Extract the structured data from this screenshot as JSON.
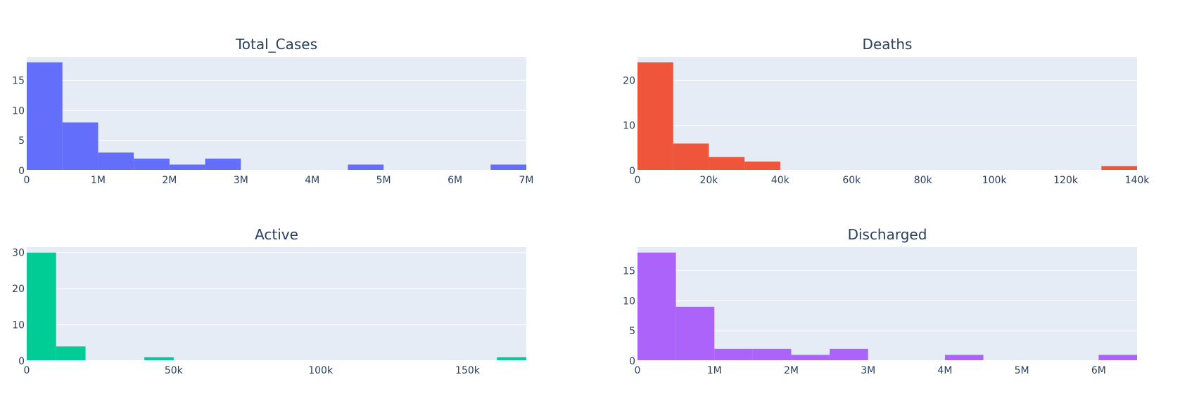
{
  "chart_data": [
    {
      "type": "bar",
      "title": "Total_Cases",
      "color": "#636efa",
      "bin_width": 500000,
      "x_start": 0,
      "values": [
        18,
        8,
        3,
        2,
        1,
        2,
        0,
        0,
        0,
        1,
        0,
        0,
        0,
        1
      ],
      "xlim": [
        0,
        7000000
      ],
      "ylim": [
        0,
        18.9
      ],
      "x_ticks": [
        {
          "v": 0,
          "label": "0"
        },
        {
          "v": 1000000,
          "label": "1M"
        },
        {
          "v": 2000000,
          "label": "2M"
        },
        {
          "v": 3000000,
          "label": "3M"
        },
        {
          "v": 4000000,
          "label": "4M"
        },
        {
          "v": 5000000,
          "label": "5M"
        },
        {
          "v": 6000000,
          "label": "6M"
        },
        {
          "v": 7000000,
          "label": "7M"
        }
      ],
      "y_ticks": [
        {
          "v": 0,
          "label": "0"
        },
        {
          "v": 5,
          "label": "5"
        },
        {
          "v": 10,
          "label": "10"
        },
        {
          "v": 15,
          "label": "15"
        }
      ],
      "grid": true
    },
    {
      "type": "bar",
      "title": "Deaths",
      "color": "#ef553b",
      "bin_width": 10000,
      "x_start": 0,
      "values": [
        24,
        6,
        3,
        2,
        0,
        0,
        0,
        0,
        0,
        0,
        0,
        0,
        0,
        1
      ],
      "xlim": [
        0,
        140000
      ],
      "ylim": [
        0,
        25.2
      ],
      "x_ticks": [
        {
          "v": 0,
          "label": "0"
        },
        {
          "v": 20000,
          "label": "20k"
        },
        {
          "v": 40000,
          "label": "40k"
        },
        {
          "v": 60000,
          "label": "60k"
        },
        {
          "v": 80000,
          "label": "80k"
        },
        {
          "v": 100000,
          "label": "100k"
        },
        {
          "v": 120000,
          "label": "120k"
        },
        {
          "v": 140000,
          "label": "140k"
        }
      ],
      "y_ticks": [
        {
          "v": 0,
          "label": "0"
        },
        {
          "v": 10,
          "label": "10"
        },
        {
          "v": 20,
          "label": "20"
        }
      ],
      "grid": true
    },
    {
      "type": "bar",
      "title": "Active",
      "color": "#00cc96",
      "bin_width": 10000,
      "x_start": 0,
      "values": [
        30,
        4,
        0,
        0,
        1,
        0,
        0,
        0,
        0,
        0,
        0,
        0,
        0,
        0,
        0,
        0,
        1
      ],
      "xlim": [
        0,
        170000
      ],
      "ylim": [
        0,
        31.5
      ],
      "x_ticks": [
        {
          "v": 0,
          "label": "0"
        },
        {
          "v": 50000,
          "label": "50k"
        },
        {
          "v": 100000,
          "label": "100k"
        },
        {
          "v": 150000,
          "label": "150k"
        }
      ],
      "y_ticks": [
        {
          "v": 0,
          "label": "0"
        },
        {
          "v": 10,
          "label": "10"
        },
        {
          "v": 20,
          "label": "20"
        },
        {
          "v": 30,
          "label": "30"
        }
      ],
      "grid": true
    },
    {
      "type": "bar",
      "title": "Discharged",
      "color": "#ab63fa",
      "bin_width": 500000,
      "x_start": 0,
      "values": [
        18,
        9,
        2,
        2,
        1,
        2,
        0,
        0,
        1,
        0,
        0,
        0,
        1
      ],
      "xlim": [
        0,
        6500000
      ],
      "ylim": [
        0,
        18.9
      ],
      "x_ticks": [
        {
          "v": 0,
          "label": "0"
        },
        {
          "v": 1000000,
          "label": "1M"
        },
        {
          "v": 2000000,
          "label": "2M"
        },
        {
          "v": 3000000,
          "label": "3M"
        },
        {
          "v": 4000000,
          "label": "4M"
        },
        {
          "v": 5000000,
          "label": "5M"
        },
        {
          "v": 6000000,
          "label": "6M"
        }
      ],
      "y_ticks": [
        {
          "v": 0,
          "label": "0"
        },
        {
          "v": 5,
          "label": "5"
        },
        {
          "v": 10,
          "label": "10"
        },
        {
          "v": 15,
          "label": "15"
        }
      ],
      "grid": true
    }
  ]
}
